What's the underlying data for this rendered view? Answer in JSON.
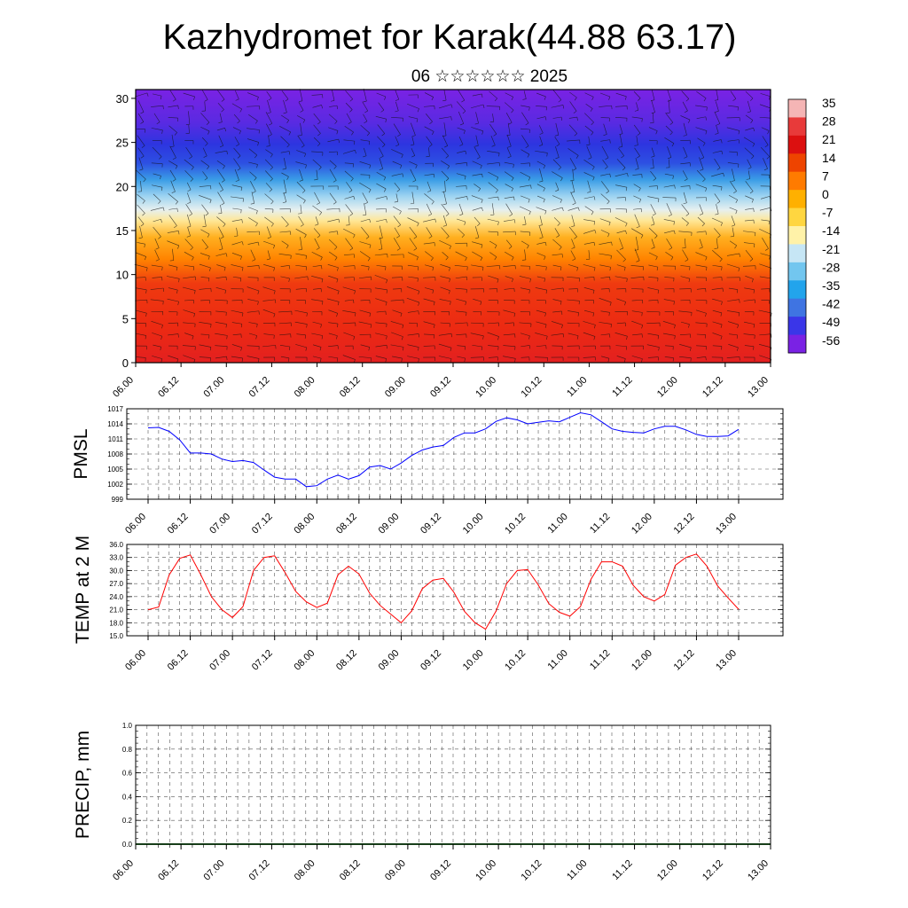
{
  "title": "Kazhydromet for Karak(44.88 63.17)",
  "subtitle": "06 ☆☆☆☆☆☆ 2025",
  "x_ticks": [
    "06.00",
    "06.12",
    "07.00",
    "07.12",
    "08.00",
    "08.12",
    "09.00",
    "09.12",
    "10.00",
    "10.12",
    "11.00",
    "11.12",
    "12.00",
    "12.12",
    "13.00"
  ],
  "chart_data": [
    {
      "type": "heatmap",
      "name": "temperature-cross-section",
      "ylim": [
        0,
        31
      ],
      "yticks": [
        0,
        5,
        10,
        15,
        20,
        25,
        30
      ],
      "colorbar_labels": [
        "35",
        "28",
        "21",
        "14",
        "7",
        "0",
        "-7",
        "-14",
        "-21",
        "-28",
        "-35",
        "-42",
        "-49",
        "-56"
      ],
      "colorbar_colors": [
        "#f5b5b5",
        "#e83a3a",
        "#dc1010",
        "#ee4400",
        "#ff7b00",
        "#ffb000",
        "#ffd640",
        "#fff2a8",
        "#c6e6f5",
        "#72c6ef",
        "#22a4ec",
        "#3f74e2",
        "#3a36e8",
        "#7a22e4"
      ],
      "bands": [
        {
          "from": 0,
          "to": 4,
          "color": "#e32020"
        },
        {
          "from": 4,
          "to": 9,
          "color": "#ef3a10"
        },
        {
          "from": 9,
          "to": 12,
          "color": "#ff8400"
        },
        {
          "from": 12,
          "to": 15,
          "color": "#ffb020"
        },
        {
          "from": 15,
          "to": 17,
          "color": "#ffe796"
        },
        {
          "from": 17,
          "to": 19.5,
          "color": "#9cd3f1"
        },
        {
          "from": 19.5,
          "to": 22,
          "color": "#3a9de6"
        },
        {
          "from": 22,
          "to": 26,
          "color": "#2d35e0"
        },
        {
          "from": 26,
          "to": 31,
          "color": "#7a22e4"
        }
      ]
    },
    {
      "type": "line",
      "name": "PMSL",
      "ylabel": "PMSL",
      "ylim": [
        999,
        1017
      ],
      "yticks": [
        "999",
        "1002",
        "1005",
        "1008",
        "1011",
        "1014",
        "1017"
      ],
      "color": "#0000ff",
      "x_range": [
        6.0,
        13.0
      ],
      "x": [
        6.0,
        6.125,
        6.25,
        6.375,
        6.5,
        6.625,
        6.75,
        6.875,
        7.0,
        7.125,
        7.25,
        7.375,
        7.5,
        7.625,
        7.75,
        7.875,
        8.0,
        8.125,
        8.25,
        8.375,
        8.5,
        8.625,
        8.75,
        8.875,
        9.0,
        9.125,
        9.25,
        9.375,
        9.5,
        9.625,
        9.75,
        9.875,
        10.0,
        10.125,
        10.25,
        10.375,
        10.5,
        10.625,
        10.75,
        10.875,
        11.0,
        11.125,
        11.25,
        11.375,
        11.5,
        11.625,
        11.75,
        11.875,
        12.0,
        12.125,
        12.25,
        12.375,
        12.5,
        12.625,
        12.75,
        12.875,
        13.0
      ],
      "values": [
        1013.2,
        1013.3,
        1012.5,
        1010.8,
        1008.2,
        1008.2,
        1008.0,
        1007.0,
        1006.5,
        1006.7,
        1006.3,
        1004.8,
        1003.4,
        1003.0,
        1003.0,
        1001.5,
        1001.7,
        1003.0,
        1003.8,
        1003.0,
        1003.7,
        1005.4,
        1005.7,
        1005.0,
        1006.2,
        1007.7,
        1008.8,
        1009.4,
        1009.7,
        1011.3,
        1012.2,
        1012.2,
        1013.0,
        1014.5,
        1015.2,
        1014.8,
        1014.0,
        1014.3,
        1014.6,
        1014.4,
        1015.3,
        1016.2,
        1015.8,
        1014.4,
        1013.0,
        1012.5,
        1012.3,
        1012.2,
        1013.0,
        1013.5,
        1013.5,
        1012.8,
        1011.9,
        1011.5,
        1011.5,
        1011.6,
        1012.9
      ]
    },
    {
      "type": "line",
      "name": "TEMP at 2 M",
      "ylabel": "TEMP at 2 M",
      "ylim": [
        15,
        36
      ],
      "yticks": [
        "15.0",
        "18.0",
        "21.0",
        "24.0",
        "27.0",
        "30.0",
        "33.0",
        "36.0"
      ],
      "color": "#ff0000",
      "x_range": [
        6.0,
        13.0
      ],
      "x": [
        6.0,
        6.125,
        6.25,
        6.375,
        6.5,
        6.625,
        6.75,
        6.875,
        7.0,
        7.125,
        7.25,
        7.375,
        7.5,
        7.625,
        7.75,
        7.875,
        8.0,
        8.125,
        8.25,
        8.375,
        8.5,
        8.625,
        8.75,
        8.875,
        9.0,
        9.125,
        9.25,
        9.375,
        9.5,
        9.625,
        9.75,
        9.875,
        10.0,
        10.125,
        10.25,
        10.375,
        10.5,
        10.625,
        10.75,
        10.875,
        11.0,
        11.125,
        11.25,
        11.375,
        11.5,
        11.625,
        11.75,
        11.875,
        12.0,
        12.125,
        12.25,
        12.375,
        12.5,
        12.625,
        12.75,
        12.875,
        13.0
      ],
      "values": [
        21.0,
        21.6,
        29.0,
        32.8,
        33.6,
        29.0,
        24.0,
        21.0,
        19.2,
        21.7,
        30.0,
        33.0,
        33.4,
        29.5,
        25.2,
        22.8,
        21.5,
        22.5,
        29.0,
        31.0,
        29.2,
        24.8,
        22.0,
        20.0,
        18.0,
        20.7,
        25.8,
        27.8,
        28.2,
        25.0,
        20.6,
        18.0,
        16.5,
        20.7,
        27.0,
        30.0,
        30.2,
        26.7,
        22.4,
        20.4,
        19.5,
        21.7,
        28.0,
        32.0,
        32.0,
        31.0,
        26.6,
        24.0,
        23.0,
        24.5,
        31.2,
        33.0,
        33.8,
        31.0,
        26.5,
        23.7,
        21.1
      ]
    },
    {
      "type": "bar",
      "name": "PRECIP",
      "ylabel": "PRECIP, mm",
      "ylim": [
        0.0,
        1.0
      ],
      "yticks": [
        "0.0",
        "0.2",
        "0.4",
        "0.6",
        "0.8",
        "1.0"
      ],
      "color": "#2e7d32",
      "x_range": [
        6.0,
        13.0
      ],
      "x": [
        6.0,
        6.25,
        6.5,
        6.75,
        7.0,
        7.25,
        7.5,
        7.75,
        8.0,
        8.25,
        8.5,
        8.75,
        9.0,
        9.25,
        9.5,
        9.75,
        10.0,
        10.25,
        10.5,
        10.75,
        11.0,
        11.25,
        11.5,
        11.75,
        12.0,
        12.25,
        12.5,
        12.75
      ],
      "values": [
        0,
        0,
        0,
        0,
        0,
        0,
        0,
        0,
        0,
        0,
        0,
        0,
        0,
        0,
        0,
        0,
        0,
        0,
        0,
        0,
        0,
        0,
        0,
        0,
        0,
        0,
        0,
        0
      ]
    }
  ]
}
